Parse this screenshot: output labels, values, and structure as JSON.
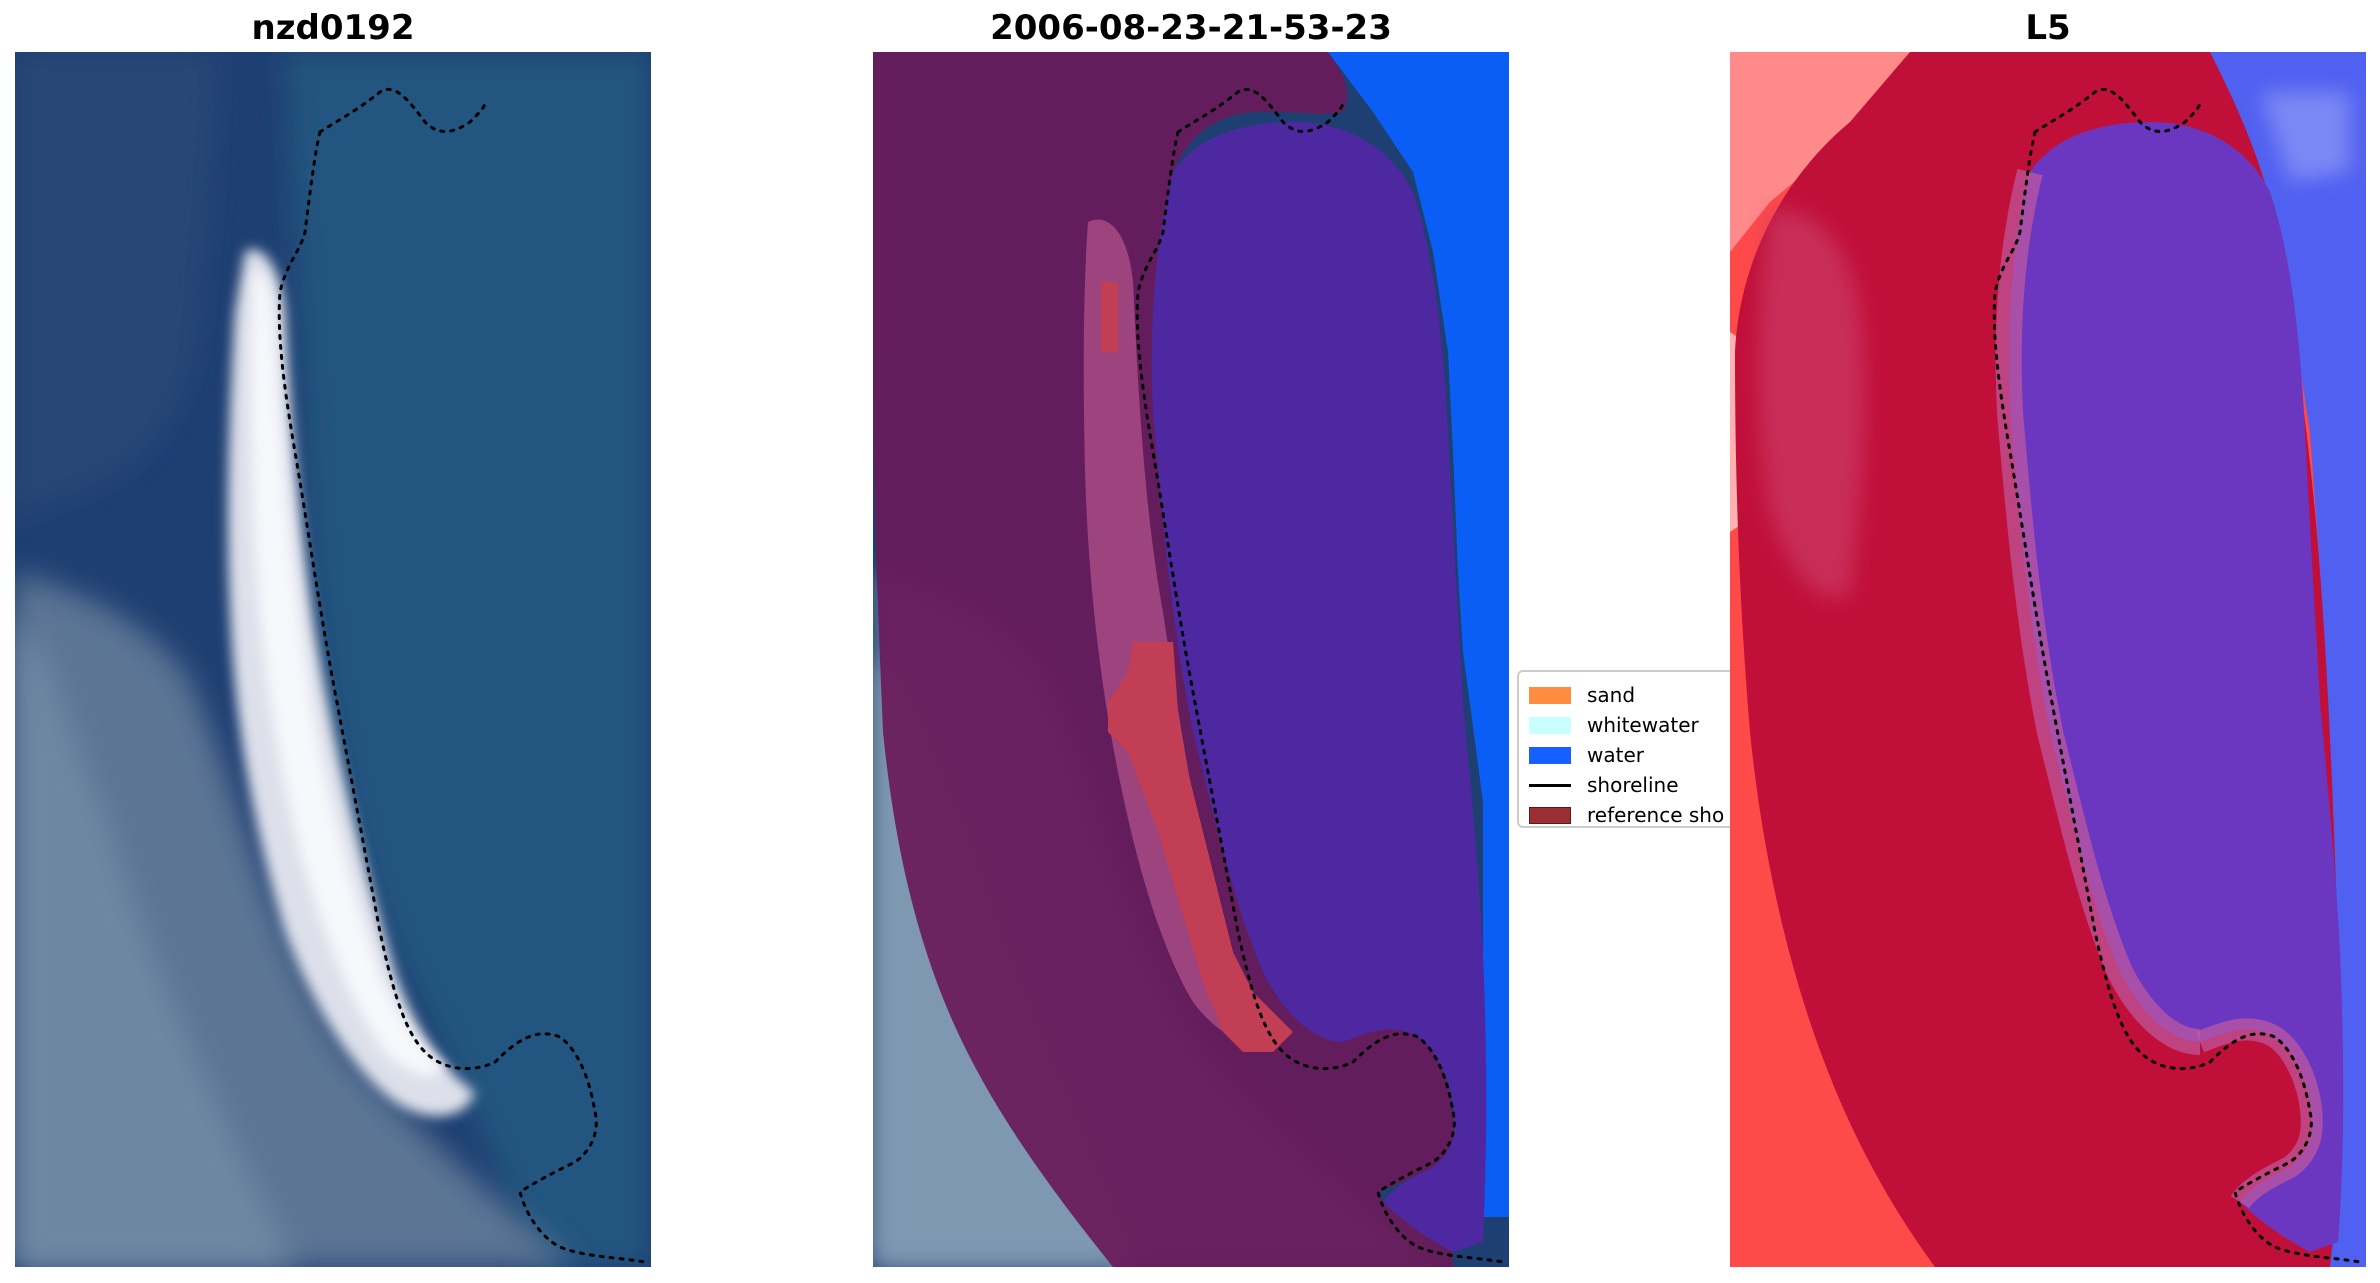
{
  "panels": [
    {
      "title": "nzd0192"
    },
    {
      "title": "2006-08-23-21-53-23"
    },
    {
      "title": "L5"
    }
  ],
  "legend": {
    "items": [
      {
        "label": "sand",
        "color": "#FF8C3F",
        "kind": "patch"
      },
      {
        "label": "whitewater",
        "color": "#C8FFFF",
        "kind": "patch"
      },
      {
        "label": "water",
        "color": "#1560FF",
        "kind": "patch"
      },
      {
        "label": "shoreline",
        "color": "#000000",
        "kind": "line"
      },
      {
        "label": "reference sho",
        "color": "#9B2F33",
        "kind": "patch"
      }
    ]
  },
  "colors": {
    "ocean": "#1F4378",
    "land": "#3E5C86",
    "beach": "#F2F2F6",
    "buffer": "#6A1A5A",
    "water_class": "#0A5EF5",
    "water_in_buffer": "#4E28A0",
    "sand_in_buffer": "#C23E55",
    "index_high": "#C0103A",
    "index_low": "#6B36C0",
    "index_outer_land": "#FF4A4A",
    "index_outer_water": "#5060F0"
  }
}
